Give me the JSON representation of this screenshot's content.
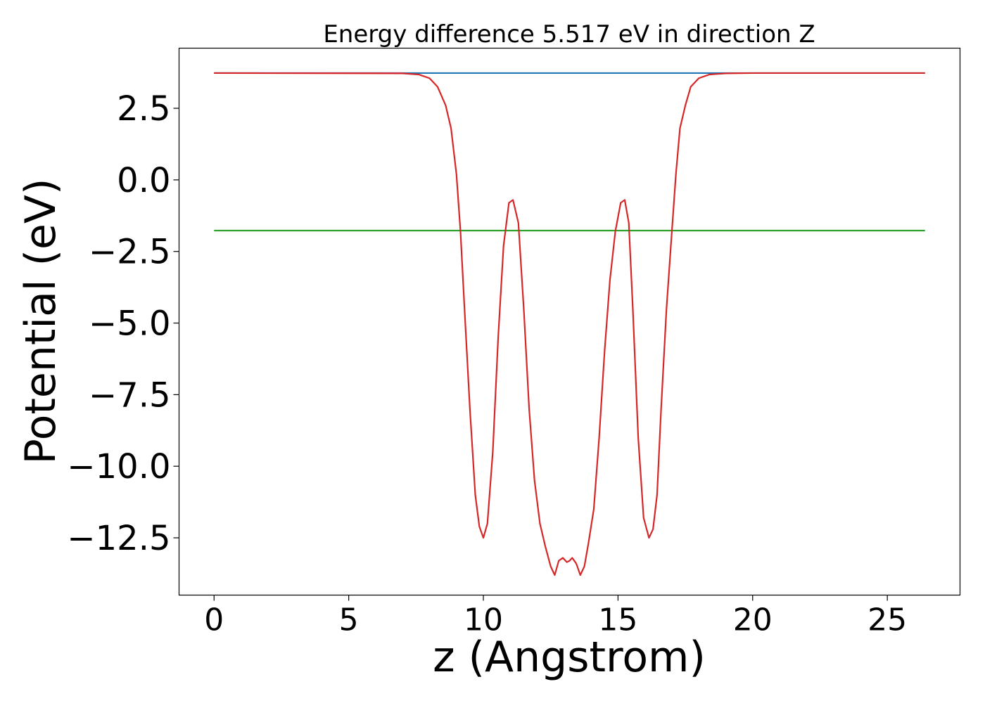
{
  "chart_data": {
    "type": "line",
    "title": "Energy difference 5.517 eV in direction Z",
    "xlabel": "z (Angstrom)",
    "ylabel": "Potential (eV)",
    "xlim": [
      -1.3,
      27.7
    ],
    "ylim": [
      -14.5,
      4.6
    ],
    "xticks": [
      0,
      5,
      10,
      15,
      20,
      25
    ],
    "xtick_labels": [
      "0",
      "5",
      "10",
      "15",
      "20",
      "25"
    ],
    "yticks": [
      2.5,
      0.0,
      -2.5,
      -5.0,
      -7.5,
      -10.0,
      -12.5
    ],
    "ytick_labels": [
      "2.5",
      "0.0",
      "−2.5",
      "−5.0",
      "−7.5",
      "−10.0",
      "−12.5"
    ],
    "grid": false,
    "legend": "none",
    "series": [
      {
        "color": "#1f77b4",
        "x": [
          0,
          26.4
        ],
        "y": [
          3.73,
          3.73
        ]
      },
      {
        "color": "#2ca02c",
        "x": [
          0,
          26.4
        ],
        "y": [
          -1.77,
          -1.77
        ]
      },
      {
        "color": "#9467bd",
        "x": [
          0,
          7.0
        ],
        "y": [
          3.73,
          3.73
        ]
      },
      {
        "color": "#d62728",
        "x": [
          0,
          7.0,
          7.6,
          8.0,
          8.3,
          8.6,
          8.8,
          9.0,
          9.15,
          9.3,
          9.5,
          9.7,
          9.85,
          10.0,
          10.15,
          10.35,
          10.55,
          10.75,
          10.95,
          11.1,
          11.3,
          11.5,
          11.7,
          11.9,
          12.1,
          12.3,
          12.5,
          12.65,
          12.8,
          12.95,
          13.1,
          13.2,
          13.3,
          13.45,
          13.6,
          13.75,
          13.9,
          14.1,
          14.3,
          14.5,
          14.7,
          14.9,
          15.1,
          15.25,
          15.4,
          15.55,
          15.75,
          15.95,
          16.15,
          16.3,
          16.45,
          16.6,
          16.8,
          17.0,
          17.15,
          17.3,
          17.5,
          17.7,
          18.0,
          18.4,
          19.0,
          20.0,
          26.4
        ],
        "y": [
          3.73,
          3.72,
          3.68,
          3.55,
          3.25,
          2.6,
          1.8,
          0.2,
          -1.8,
          -4.5,
          -8.0,
          -11.0,
          -12.1,
          -12.5,
          -12.0,
          -9.5,
          -5.5,
          -2.3,
          -0.8,
          -0.7,
          -1.5,
          -4.5,
          -8.0,
          -10.5,
          -12.0,
          -12.8,
          -13.5,
          -13.8,
          -13.3,
          -13.2,
          -13.35,
          -13.3,
          -13.2,
          -13.4,
          -13.8,
          -13.5,
          -12.7,
          -11.5,
          -9.0,
          -6.0,
          -3.5,
          -1.8,
          -0.8,
          -0.7,
          -1.5,
          -4.5,
          -9.0,
          -11.8,
          -12.5,
          -12.2,
          -11.0,
          -8.0,
          -4.5,
          -1.8,
          0.2,
          1.8,
          2.6,
          3.25,
          3.55,
          3.68,
          3.72,
          3.73,
          3.73
        ]
      }
    ]
  }
}
